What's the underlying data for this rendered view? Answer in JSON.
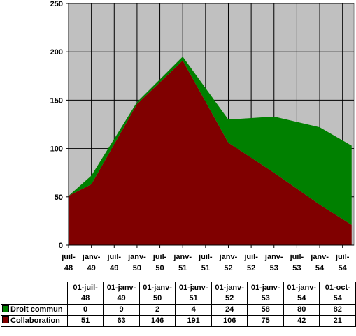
{
  "chart_data": {
    "type": "area",
    "stacked": true,
    "ylim": [
      0,
      250
    ],
    "yticks": [
      0,
      50,
      100,
      150,
      200,
      250
    ],
    "xticks": [
      "juil-48",
      "janv-49",
      "juil-49",
      "janv-50",
      "juil-50",
      "janv-51",
      "juil-51",
      "janv-52",
      "juil-52",
      "janv-53",
      "juil-53",
      "janv-54",
      "juil-54"
    ],
    "x_points": [
      0,
      1,
      3,
      5,
      7,
      9,
      11,
      12.4
    ],
    "categories": [
      "01-juil-48",
      "01-janv-49",
      "01-janv-50",
      "01-janv-51",
      "01-janv-52",
      "01-janv-53",
      "01-janv-54",
      "01-oct-54"
    ],
    "series": [
      {
        "name": "Collaboration",
        "color": "#800000",
        "values": [
          51,
          63,
          146,
          191,
          106,
          75,
          42,
          21
        ]
      },
      {
        "name": "Droit commun",
        "color": "#008000",
        "values": [
          0,
          9,
          2,
          4,
          24,
          58,
          80,
          82
        ]
      }
    ],
    "grid": true,
    "plot_background": "#c0c0c0",
    "legend": "in-table"
  }
}
